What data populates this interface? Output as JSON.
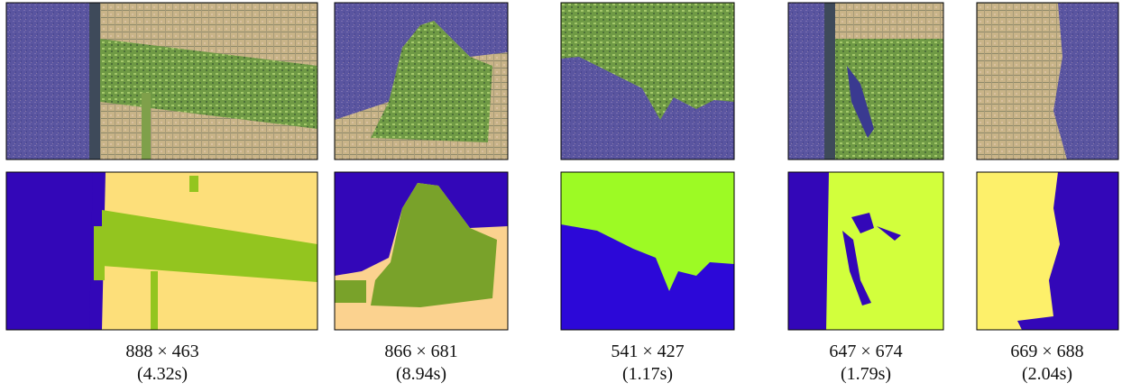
{
  "columns": [
    {
      "size": "888 × 463",
      "time": "(4.32s)"
    },
    {
      "size": "866 × 681",
      "time": "(8.94s)"
    },
    {
      "size": "541 × 427",
      "time": "(1.17s)"
    },
    {
      "size": "647 × 674",
      "time": "(1.79s)"
    },
    {
      "size": "669 × 688",
      "time": "(2.04s)"
    }
  ]
}
